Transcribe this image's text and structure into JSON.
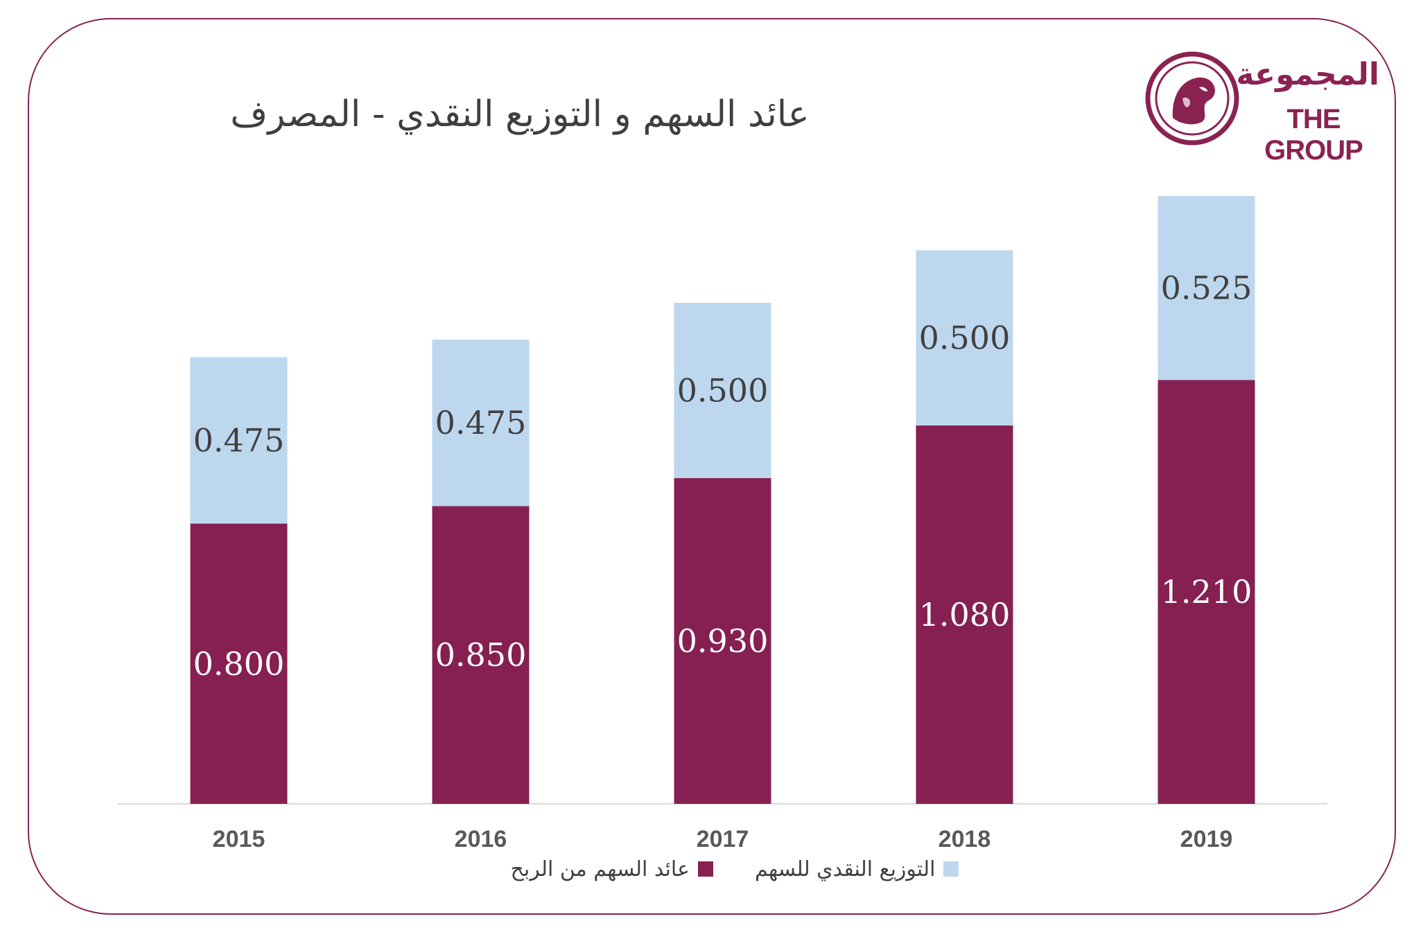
{
  "title": "عائد السهم و التوزيع النقدي - المصرف",
  "logo": {
    "text_ar": "المجموعة",
    "text_en": "THE GROUP",
    "color": "#8a2252"
  },
  "chart_data": {
    "type": "bar",
    "stacked": true,
    "title": "عائد السهم و التوزيع النقدي - المصرف",
    "xlabel": "",
    "ylabel": "",
    "categories": [
      "2015",
      "2016",
      "2017",
      "2018",
      "2019"
    ],
    "ylim": [
      0,
      1.8
    ],
    "grid": false,
    "legend": "bottom",
    "series": [
      {
        "name": "عائد السهم من الربح",
        "color": "#862052",
        "label_color": "#ffffff",
        "values": [
          0.8,
          0.85,
          0.93,
          1.08,
          1.21
        ],
        "labels": [
          "0.800",
          "0.850",
          "0.930",
          "1.080",
          "1.210"
        ]
      },
      {
        "name": "التوزيع النقدي للسهم",
        "color": "#bdd7ee",
        "label_color": "#404040",
        "values": [
          0.475,
          0.475,
          0.5,
          0.5,
          0.525
        ],
        "labels": [
          "0.475",
          "0.475",
          "0.500",
          "0.500",
          "0.525"
        ]
      }
    ]
  },
  "legend": {
    "items": [
      {
        "label": "عائد السهم من الربح",
        "color": "#862052"
      },
      {
        "label": "التوزيع النقدي للسهم",
        "color": "#bdd7ee"
      }
    ]
  }
}
